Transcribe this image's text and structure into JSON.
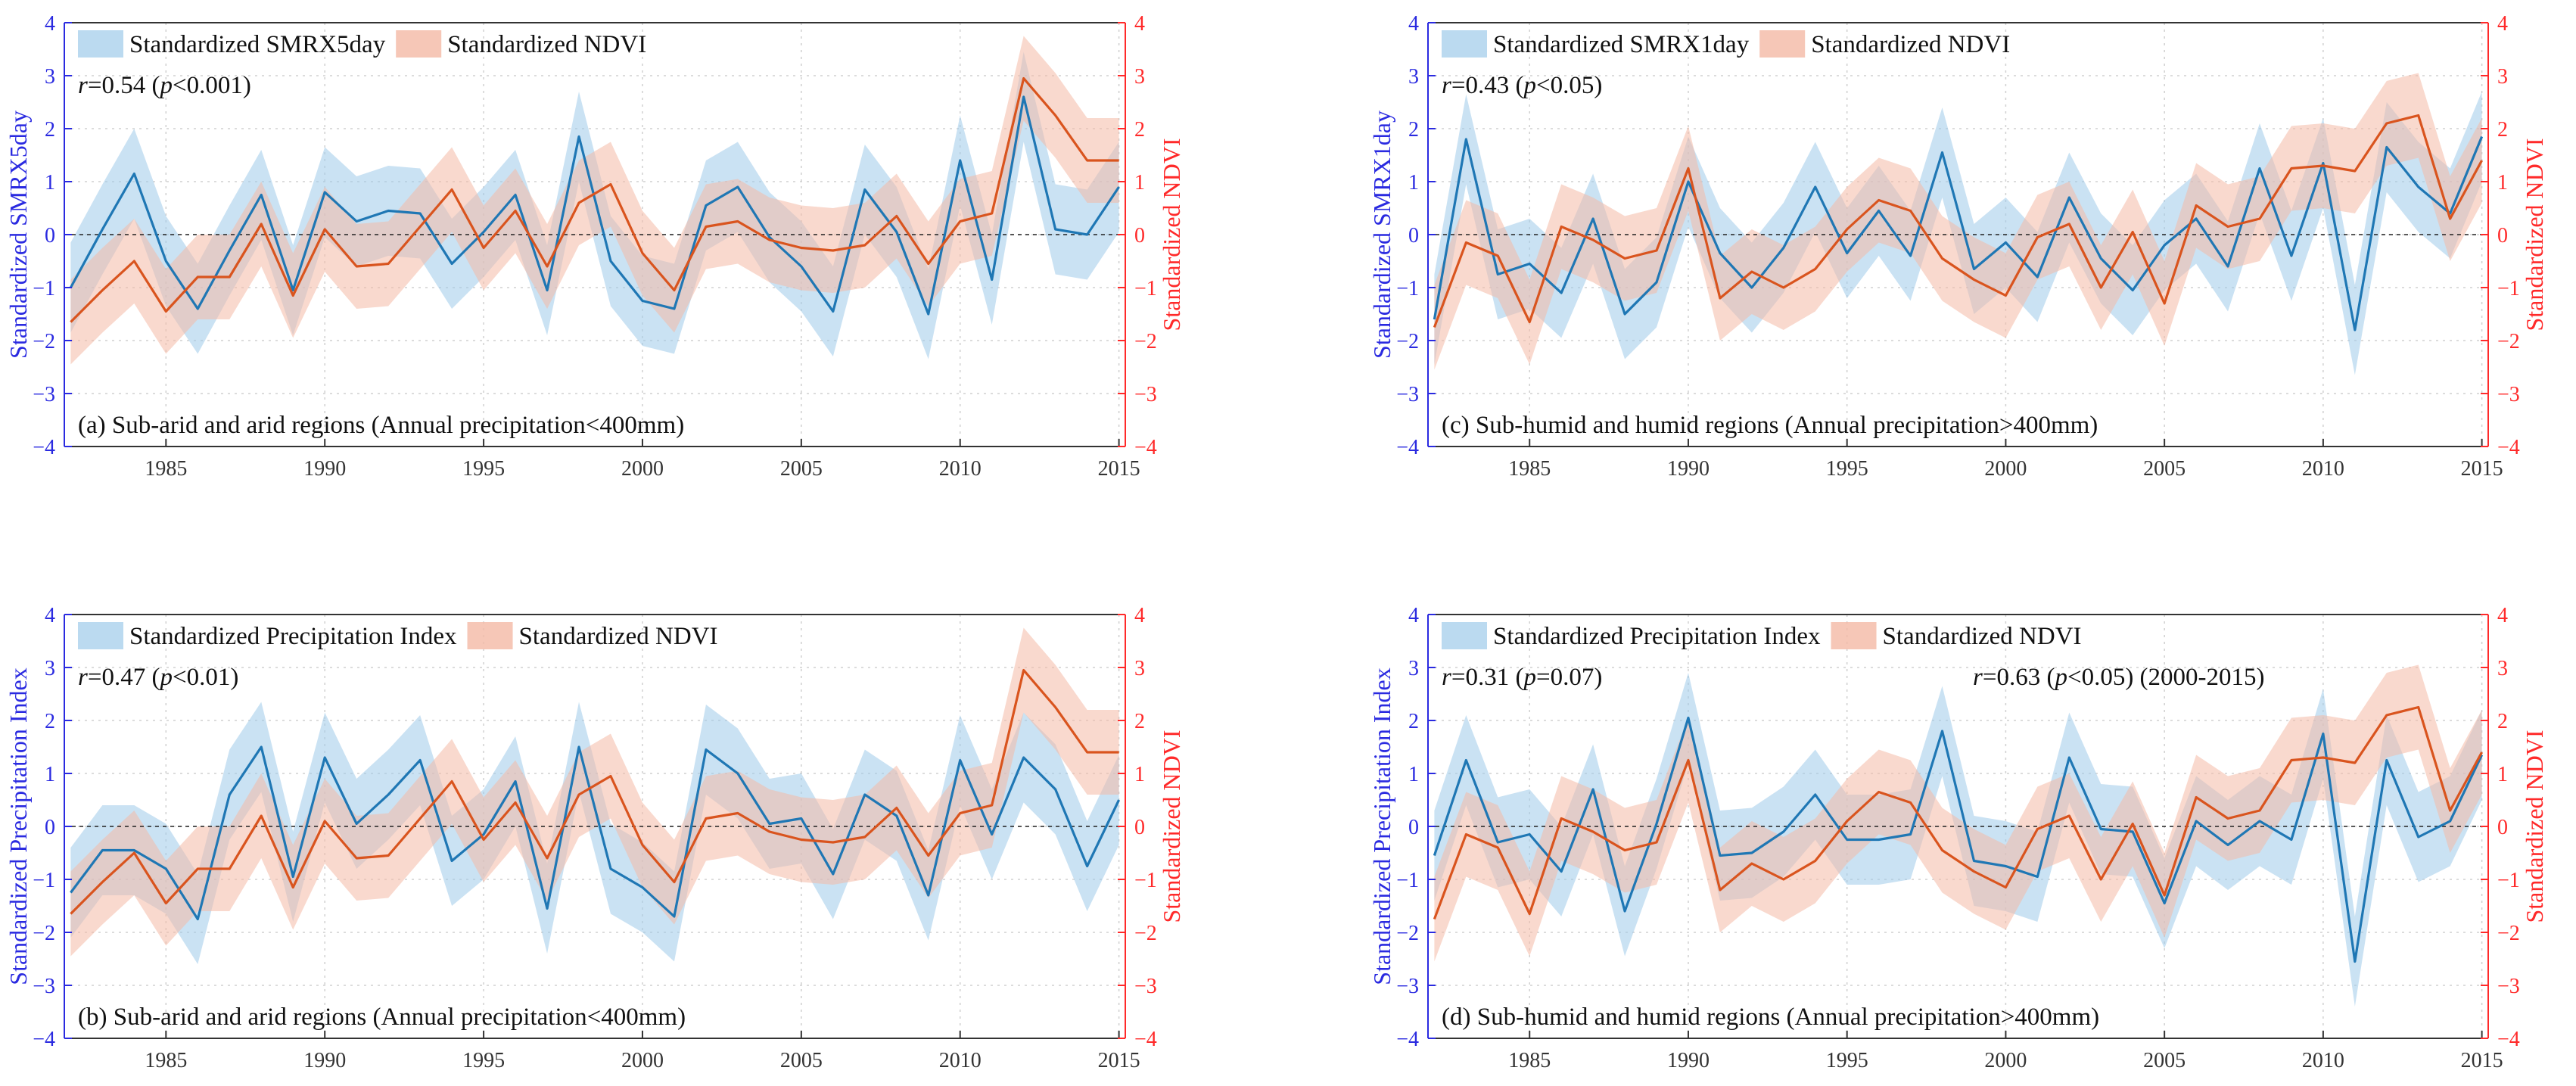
{
  "colors": {
    "blue_line": "#1f77b4",
    "blue_band": "#9ecae9",
    "red_line": "#d9541e",
    "red_band": "#f4b9a5",
    "left_axis": "#2a2ae0",
    "right_axis": "#ff2a2a"
  },
  "chart_data": [
    {
      "id": "a",
      "type": "line",
      "caption": "(a) Sub-arid and arid regions (Annual precipitation<400mm)",
      "ylabel_left": "Standardized SMRX5day",
      "ylabel_right": "Standardized NDVI",
      "legend": [
        "Standardized SMRX5day",
        "Standardized NDVI"
      ],
      "stats": [
        {
          "r": "r",
          "text1": "=0.54 (",
          "p": "p",
          "text2": "<0.001)"
        }
      ],
      "x": [
        1982,
        1983,
        1984,
        1985,
        1986,
        1987,
        1988,
        1989,
        1990,
        1991,
        1992,
        1993,
        1994,
        1995,
        1996,
        1997,
        1998,
        1999,
        2000,
        2001,
        2002,
        2003,
        2004,
        2005,
        2006,
        2007,
        2008,
        2009,
        2010,
        2011,
        2012,
        2013,
        2014,
        2015
      ],
      "xticks": [
        1985,
        1990,
        1995,
        2000,
        2005,
        2010,
        2015
      ],
      "xlim": [
        1981.8,
        2015.2
      ],
      "ylim": [
        -4,
        4
      ],
      "yticks": [
        -4,
        -3,
        -2,
        -1,
        0,
        1,
        2,
        3,
        4
      ],
      "series": [
        {
          "name": "Standardized SMRX5day",
          "values": [
            -1.0,
            0.1,
            1.15,
            -0.5,
            -1.4,
            -0.3,
            0.75,
            -1.05,
            0.8,
            0.25,
            0.45,
            0.4,
            -0.55,
            0.05,
            0.75,
            -1.05,
            1.85,
            -0.5,
            -1.25,
            -1.4,
            0.55,
            0.9,
            -0.05,
            -0.6,
            -1.45,
            0.85,
            0.05,
            -1.5,
            1.4,
            -0.85,
            2.6,
            0.1,
            0.0,
            0.9
          ],
          "band": 0.85
        },
        {
          "name": "Standardized NDVI",
          "values": [
            -1.65,
            -1.05,
            -0.5,
            -1.45,
            -0.8,
            -0.8,
            0.2,
            -1.15,
            0.1,
            -0.6,
            -0.55,
            0.15,
            0.85,
            -0.25,
            0.45,
            -0.6,
            0.6,
            0.95,
            -0.35,
            -1.05,
            0.15,
            0.25,
            -0.1,
            -0.25,
            -0.3,
            -0.2,
            0.35,
            -0.55,
            0.25,
            0.4,
            2.95,
            2.25,
            1.4,
            1.4
          ],
          "band": 0.8
        }
      ]
    },
    {
      "id": "c",
      "type": "line",
      "caption": "(c) Sub-humid and humid regions (Annual precipitation>400mm)",
      "ylabel_left": "Standardized SMRX1day",
      "ylabel_right": "Standardized NDVI",
      "legend": [
        "Standardized SMRX1day",
        "Standardized NDVI"
      ],
      "stats": [
        {
          "r": "r",
          "text1": "=0.43 (",
          "p": "p",
          "text2": "<0.05)"
        }
      ],
      "x": [
        1982,
        1983,
        1984,
        1985,
        1986,
        1987,
        1988,
        1989,
        1990,
        1991,
        1992,
        1993,
        1994,
        1995,
        1996,
        1997,
        1998,
        1999,
        2000,
        2001,
        2002,
        2003,
        2004,
        2005,
        2006,
        2007,
        2008,
        2009,
        2010,
        2011,
        2012,
        2013,
        2014,
        2015
      ],
      "xticks": [
        1985,
        1990,
        1995,
        2000,
        2005,
        2010,
        2015
      ],
      "xlim": [
        1981.8,
        2015.2
      ],
      "ylim": [
        -4,
        4
      ],
      "yticks": [
        -4,
        -3,
        -2,
        -1,
        0,
        1,
        2,
        3,
        4
      ],
      "series": [
        {
          "name": "Standardized SMRX1day",
          "values": [
            -1.6,
            1.8,
            -0.75,
            -0.55,
            -1.1,
            0.3,
            -1.5,
            -0.9,
            1.0,
            -0.35,
            -1.0,
            -0.25,
            0.9,
            -0.35,
            0.45,
            -0.4,
            1.55,
            -0.65,
            -0.15,
            -0.8,
            0.7,
            -0.45,
            -1.05,
            -0.2,
            0.3,
            -0.6,
            1.25,
            -0.4,
            1.35,
            -1.8,
            1.65,
            0.9,
            0.4,
            1.85
          ],
          "band": 0.85
        },
        {
          "name": "Standardized NDVI",
          "values": [
            -1.75,
            -0.15,
            -0.4,
            -1.65,
            0.15,
            -0.1,
            -0.45,
            -0.3,
            1.25,
            -1.2,
            -0.7,
            -1.0,
            -0.65,
            0.1,
            0.65,
            0.45,
            -0.45,
            -0.85,
            -1.15,
            -0.05,
            0.2,
            -1.0,
            0.05,
            -1.3,
            0.55,
            0.15,
            0.3,
            1.25,
            1.3,
            1.2,
            2.1,
            2.25,
            0.3,
            1.4
          ],
          "band": 0.8
        }
      ]
    },
    {
      "id": "b",
      "type": "line",
      "caption": "(b) Sub-arid and arid regions (Annual precipitation<400mm)",
      "ylabel_left": "Standardized Precipitation Index",
      "ylabel_right": "Standardized NDVI",
      "legend": [
        "Standardized Precipitation Index",
        "Standardized NDVI"
      ],
      "stats": [
        {
          "r": "r",
          "text1": "=0.47 (",
          "p": "p",
          "text2": "<0.01)"
        }
      ],
      "x": [
        1982,
        1983,
        1984,
        1985,
        1986,
        1987,
        1988,
        1989,
        1990,
        1991,
        1992,
        1993,
        1994,
        1995,
        1996,
        1997,
        1998,
        1999,
        2000,
        2001,
        2002,
        2003,
        2004,
        2005,
        2006,
        2007,
        2008,
        2009,
        2010,
        2011,
        2012,
        2013,
        2014,
        2015
      ],
      "xticks": [
        1985,
        1990,
        1995,
        2000,
        2005,
        2010,
        2015
      ],
      "xlim": [
        1981.8,
        2015.2
      ],
      "ylim": [
        -4,
        4
      ],
      "yticks": [
        -4,
        -3,
        -2,
        -1,
        0,
        1,
        2,
        3,
        4
      ],
      "series": [
        {
          "name": "Standardized Precipitation Index",
          "values": [
            -1.25,
            -0.45,
            -0.45,
            -0.8,
            -1.75,
            0.6,
            1.5,
            -0.95,
            1.3,
            0.05,
            0.6,
            1.25,
            -0.65,
            -0.15,
            0.85,
            -1.55,
            1.5,
            -0.8,
            -1.15,
            -1.7,
            1.45,
            1.0,
            0.05,
            0.15,
            -0.9,
            0.6,
            0.2,
            -1.3,
            1.25,
            -0.15,
            1.3,
            0.7,
            -0.75,
            0.5
          ],
          "band": 0.85
        },
        {
          "name": "Standardized NDVI",
          "values": [
            -1.65,
            -1.05,
            -0.5,
            -1.45,
            -0.8,
            -0.8,
            0.2,
            -1.15,
            0.1,
            -0.6,
            -0.55,
            0.15,
            0.85,
            -0.25,
            0.45,
            -0.6,
            0.6,
            0.95,
            -0.35,
            -1.05,
            0.15,
            0.25,
            -0.1,
            -0.25,
            -0.3,
            -0.2,
            0.35,
            -0.55,
            0.25,
            0.4,
            2.95,
            2.25,
            1.4,
            1.4
          ],
          "band": 0.8
        }
      ]
    },
    {
      "id": "d",
      "type": "line",
      "caption": "(d) Sub-humid and humid regions (Annual precipitation>400mm)",
      "ylabel_left": "Standardized Precipitation Index",
      "ylabel_right": "Standardized NDVI",
      "legend": [
        "Standardized Precipitation Index",
        "Standardized NDVI"
      ],
      "stats": [
        {
          "r": "r",
          "text1": "=0.31 (",
          "p": "p",
          "text2": "=0.07)"
        },
        {
          "r": "r",
          "text1": "=0.63 (",
          "p": "p",
          "text2": "<0.05) (2000-2015)"
        }
      ],
      "x": [
        1982,
        1983,
        1984,
        1985,
        1986,
        1987,
        1988,
        1989,
        1990,
        1991,
        1992,
        1993,
        1994,
        1995,
        1996,
        1997,
        1998,
        1999,
        2000,
        2001,
        2002,
        2003,
        2004,
        2005,
        2006,
        2007,
        2008,
        2009,
        2010,
        2011,
        2012,
        2013,
        2014,
        2015
      ],
      "xticks": [
        1985,
        1990,
        1995,
        2000,
        2005,
        2010,
        2015
      ],
      "xlim": [
        1981.8,
        2015.2
      ],
      "ylim": [
        -4,
        4
      ],
      "yticks": [
        -4,
        -3,
        -2,
        -1,
        0,
        1,
        2,
        3,
        4
      ],
      "series": [
        {
          "name": "Standardized Precipitation Index",
          "values": [
            -0.55,
            1.25,
            -0.3,
            -0.15,
            -0.85,
            0.7,
            -1.6,
            0.05,
            2.05,
            -0.55,
            -0.5,
            -0.1,
            0.6,
            -0.25,
            -0.25,
            -0.15,
            1.8,
            -0.65,
            -0.75,
            -0.95,
            1.3,
            -0.05,
            -0.1,
            -1.45,
            0.1,
            -0.35,
            0.1,
            -0.25,
            1.75,
            -2.55,
            1.25,
            -0.2,
            0.1,
            1.35
          ],
          "band": 0.85
        },
        {
          "name": "Standardized NDVI",
          "values": [
            -1.75,
            -0.15,
            -0.4,
            -1.65,
            0.15,
            -0.1,
            -0.45,
            -0.3,
            1.25,
            -1.2,
            -0.7,
            -1.0,
            -0.65,
            0.1,
            0.65,
            0.45,
            -0.45,
            -0.85,
            -1.15,
            -0.05,
            0.2,
            -1.0,
            0.05,
            -1.3,
            0.55,
            0.15,
            0.3,
            1.25,
            1.3,
            1.2,
            2.1,
            2.25,
            0.3,
            1.4
          ],
          "band": 0.8
        }
      ]
    }
  ]
}
